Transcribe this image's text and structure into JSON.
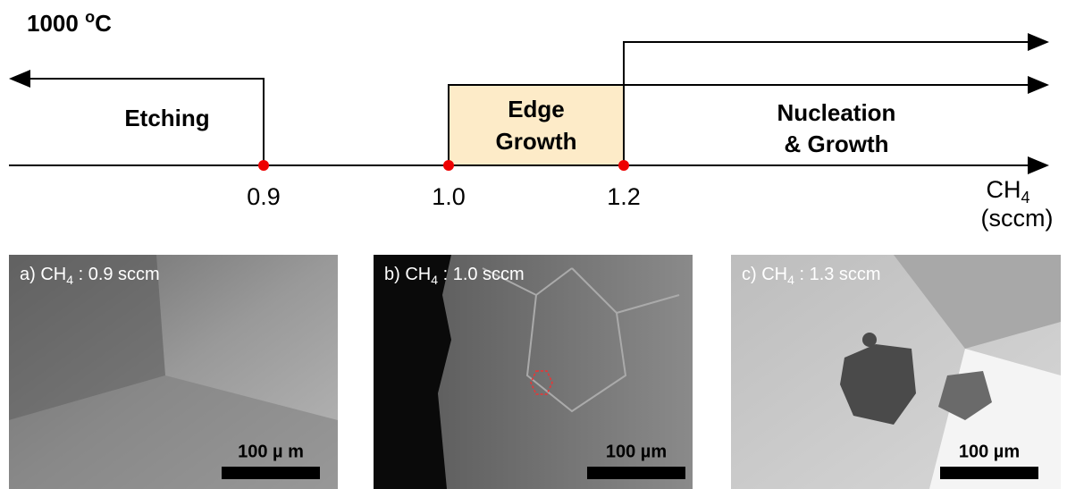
{
  "temperature": {
    "number": "1000 ",
    "degree": "o",
    "unit": "C"
  },
  "regions": {
    "etching": "Etching",
    "edge_growth": [
      "Edge",
      "Growth"
    ],
    "nucleation": [
      "Nucleation",
      "& Growth"
    ]
  },
  "axis": {
    "ticks": [
      "0.9",
      "1.0",
      "1.2"
    ],
    "label": {
      "species": "CH",
      "subscript": "4",
      "unit": "(sccm)"
    }
  },
  "panels": [
    {
      "prefix": "a) CH",
      "subscript": "4",
      "suffix": " : 0.9 sccm",
      "scale_bar": "100 µ m"
    },
    {
      "prefix": "b) CH",
      "subscript": "4",
      "suffix": " : 1.0 sccm",
      "scale_bar": "100 µm"
    },
    {
      "prefix": "c) CH",
      "subscript": "4",
      "suffix": " : 1.3 sccm",
      "scale_bar": "100 µm"
    }
  ]
}
